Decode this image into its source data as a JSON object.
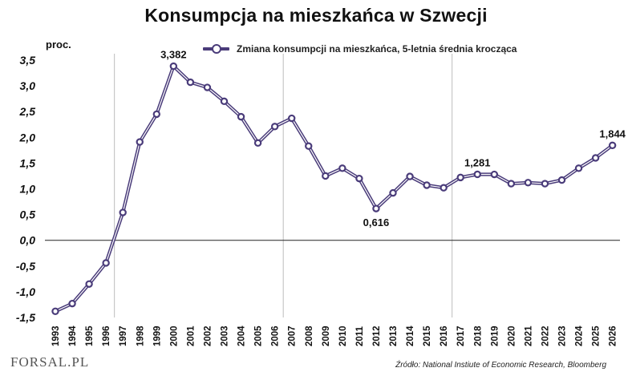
{
  "chart_data": {
    "type": "line",
    "title": "Konsumpcja na mieszkańca w Szwecji",
    "ylabel": "proc.",
    "xlabel": "",
    "x": [
      "1993",
      "1994",
      "1995",
      "1996",
      "1997",
      "1998",
      "1999",
      "2000",
      "2001",
      "2002",
      "2003",
      "2004",
      "2005",
      "2006",
      "2007",
      "2008",
      "2009",
      "2010",
      "2011",
      "2012",
      "2013",
      "2014",
      "2015",
      "2016",
      "2017",
      "2018",
      "2019",
      "2020",
      "2021",
      "2022",
      "2023",
      "2024",
      "2025",
      "2026"
    ],
    "series": [
      {
        "name": "Zmiana konsumpcji na mieszkańca, 5-letnia średnia krocząca",
        "values": [
          -1.38,
          -1.23,
          -0.85,
          -0.44,
          0.54,
          1.91,
          2.45,
          3.382,
          3.07,
          2.97,
          2.7,
          2.4,
          1.89,
          2.21,
          2.37,
          1.83,
          1.25,
          1.4,
          1.2,
          0.616,
          0.92,
          1.24,
          1.07,
          1.02,
          1.22,
          1.281,
          1.28,
          1.1,
          1.12,
          1.1,
          1.17,
          1.4,
          1.6,
          1.844
        ]
      }
    ],
    "ylim": [
      -1.5,
      3.5
    ],
    "yticks": [
      "3,5",
      "3,0",
      "2,5",
      "2,0",
      "1,5",
      "1,0",
      "0,5",
      "0,0",
      "-0,5",
      "-1,0",
      "-1,5"
    ],
    "ytick_values": [
      3.5,
      3.0,
      2.5,
      2.0,
      1.5,
      1.0,
      0.5,
      0.0,
      -0.5,
      -1.0,
      -1.5
    ],
    "annotations": [
      {
        "x": "2000",
        "text": "3,382",
        "position": "above"
      },
      {
        "x": "2012",
        "text": "0,616",
        "position": "below"
      },
      {
        "x": "2018",
        "text": "1,281",
        "position": "above"
      },
      {
        "x": "2026",
        "text": "1,844",
        "position": "above"
      }
    ],
    "grid": "vertical-every-10-years",
    "zero_line": true,
    "legend_position": "top-center",
    "line_color": "#4a3c7a"
  },
  "footer": {
    "source": "Źródło: National Instiute of Economic Research, Bloomberg",
    "logo": "FORSAL.PL"
  }
}
